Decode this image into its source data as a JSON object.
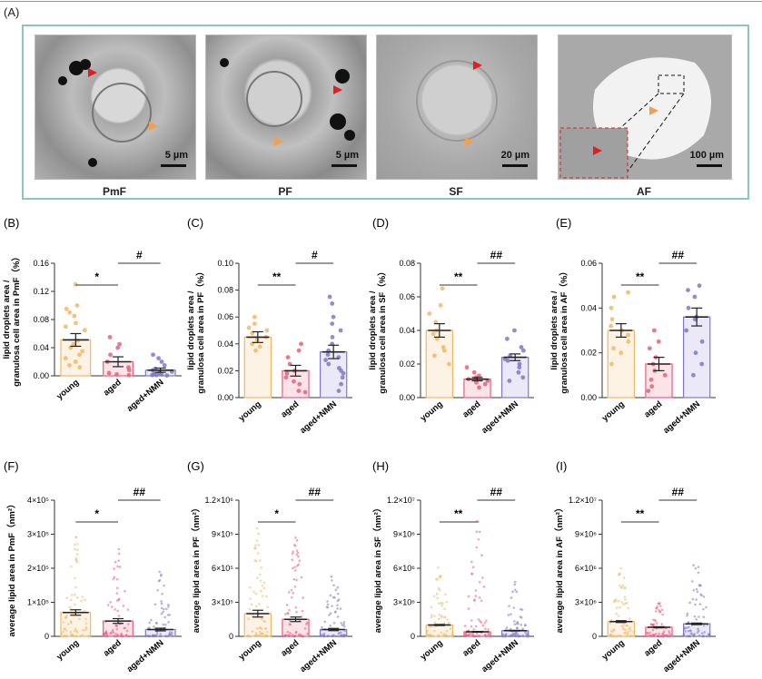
{
  "figure_label": "(A)",
  "em_panels": [
    {
      "caption": "PmF",
      "scale": "5 µm"
    },
    {
      "caption": "PF",
      "scale": "5 µm"
    },
    {
      "caption": "SF",
      "scale": "20 µm"
    },
    {
      "caption": "AF",
      "scale": "100 µm"
    }
  ],
  "colors": {
    "young": "#f2b766",
    "aged": "#e5607e",
    "nmn": "#7f78c8",
    "frame": "#8cc9b3",
    "marker_red": "#e02020",
    "marker_orange": "#f0a050"
  },
  "chart_data": [
    {
      "panel": "(B)",
      "type": "bar",
      "ylabel": "lipid droplets area / granulosa cell area in PmF（%）",
      "categories": [
        "young",
        "aged",
        "aged+NMN"
      ],
      "values": [
        0.051,
        0.02,
        0.008
      ],
      "errors": [
        0.009,
        0.007,
        0.003
      ],
      "points": [
        [
          0.13,
          0.1,
          0.095,
          0.09,
          0.085,
          0.075,
          0.07,
          0.065,
          0.05,
          0.045,
          0.04,
          0.035,
          0.03,
          0.025,
          0.02,
          0.015,
          0.012
        ],
        [
          0.055,
          0.045,
          0.04,
          0.03,
          0.02,
          0.012,
          0.008,
          0.004,
          0.002,
          0.001
        ],
        [
          0.03,
          0.025,
          0.02,
          0.015,
          0.01,
          0.008,
          0.006,
          0.004,
          0.003,
          0.002,
          0.001,
          0.001,
          0.0005
        ]
      ],
      "ylim": [
        0,
        0.16
      ],
      "yticks": [
        "0.00",
        "0.04",
        "0.08",
        "0.12",
        "0.16"
      ],
      "sig": [
        {
          "label": "*",
          "from": 0,
          "to": 1,
          "level": 0
        },
        {
          "label": "#",
          "from": 1,
          "to": 2,
          "level": 1
        }
      ]
    },
    {
      "panel": "(C)",
      "type": "bar",
      "ylabel": "lipid droplets area / granulosa cell area in PF（%）",
      "categories": [
        "young",
        "aged",
        "aged+NMN"
      ],
      "values": [
        0.045,
        0.02,
        0.034
      ],
      "errors": [
        0.004,
        0.004,
        0.005
      ],
      "points": [
        [
          0.06,
          0.055,
          0.052,
          0.05,
          0.048,
          0.045,
          0.043,
          0.04,
          0.038,
          0.035
        ],
        [
          0.04,
          0.035,
          0.03,
          0.025,
          0.02,
          0.018,
          0.015,
          0.012,
          0.01,
          0.005,
          0.004
        ],
        [
          0.075,
          0.07,
          0.06,
          0.055,
          0.05,
          0.045,
          0.04,
          0.035,
          0.032,
          0.03,
          0.028,
          0.025,
          0.022,
          0.02,
          0.018,
          0.015,
          0.01,
          0.005
        ]
      ],
      "ylim": [
        0,
        0.1
      ],
      "yticks": [
        "0.00",
        "0.02",
        "0.04",
        "0.06",
        "0.08",
        "0.10"
      ],
      "sig": [
        {
          "label": "**",
          "from": 0,
          "to": 1,
          "level": 0
        },
        {
          "label": "#",
          "from": 1,
          "to": 2,
          "level": 1
        }
      ]
    },
    {
      "panel": "(D)",
      "type": "bar",
      "ylabel": "lipid droplets area / granulosa cell area in SF（%）",
      "categories": [
        "young",
        "aged",
        "aged+NMN"
      ],
      "values": [
        0.04,
        0.011,
        0.024
      ],
      "errors": [
        0.004,
        0.001,
        0.002
      ],
      "points": [
        [
          0.065,
          0.055,
          0.05,
          0.045,
          0.04,
          0.038,
          0.035,
          0.03,
          0.028,
          0.025,
          0.02
        ],
        [
          0.018,
          0.015,
          0.013,
          0.012,
          0.011,
          0.01,
          0.009,
          0.008,
          0.006
        ],
        [
          0.04,
          0.035,
          0.03,
          0.028,
          0.025,
          0.023,
          0.022,
          0.02,
          0.018,
          0.015,
          0.012,
          0.01
        ]
      ],
      "ylim": [
        0,
        0.08
      ],
      "yticks": [
        "0.00",
        "0.02",
        "0.04",
        "0.06",
        "0.08"
      ],
      "sig": [
        {
          "label": "**",
          "from": 0,
          "to": 1,
          "level": 0
        },
        {
          "label": "##",
          "from": 1,
          "to": 2,
          "level": 1
        }
      ]
    },
    {
      "panel": "(E)",
      "type": "bar",
      "ylabel": "lipid droplets area / granulosa cell area in AF（%）",
      "categories": [
        "young",
        "aged",
        "aged+NMN"
      ],
      "values": [
        0.03,
        0.015,
        0.036
      ],
      "errors": [
        0.003,
        0.003,
        0.004
      ],
      "points": [
        [
          0.047,
          0.045,
          0.04,
          0.035,
          0.032,
          0.03,
          0.028,
          0.025,
          0.022,
          0.02,
          0.015
        ],
        [
          0.03,
          0.025,
          0.022,
          0.018,
          0.015,
          0.012,
          0.01,
          0.008,
          0.005,
          0.003
        ],
        [
          0.05,
          0.048,
          0.045,
          0.04,
          0.036,
          0.035,
          0.03,
          0.025,
          0.02,
          0.015,
          0.01
        ]
      ],
      "ylim": [
        0,
        0.06
      ],
      "yticks": [
        "0.00",
        "0.02",
        "0.04",
        "0.06"
      ],
      "sig": [
        {
          "label": "**",
          "from": 0,
          "to": 1,
          "level": 0
        },
        {
          "label": "##",
          "from": 1,
          "to": 2,
          "level": 1
        }
      ]
    },
    {
      "panel": "(F)",
      "type": "scatter-bar",
      "ylabel": "average lipid area in PmF（nm²）",
      "categories": [
        "young",
        "aged",
        "aged+NMN"
      ],
      "values": [
        70000,
        45000,
        20000
      ],
      "errors": [
        8000,
        7000,
        4000
      ],
      "point_max": [
        300000,
        260000,
        190000
      ],
      "ylim": [
        0,
        400000
      ],
      "yticks": [
        "0",
        "1×10⁵",
        "2×10⁵",
        "3×10⁵",
        "4×10⁵"
      ],
      "sig": [
        {
          "label": "*",
          "from": 0,
          "to": 1,
          "level": 0
        },
        {
          "label": "##",
          "from": 1,
          "to": 2,
          "level": 1
        }
      ]
    },
    {
      "panel": "(G)",
      "type": "scatter-bar",
      "ylabel": "average lipid area in PF（nm²）",
      "categories": [
        "young",
        "aged",
        "aged+NMN"
      ],
      "values": [
        200000,
        150000,
        60000
      ],
      "errors": [
        30000,
        20000,
        10000
      ],
      "point_max": [
        1000000,
        900000,
        600000
      ],
      "ylim": [
        0,
        1200000
      ],
      "yticks": [
        "0",
        "3×10⁵",
        "6×10⁵",
        "9×10⁵",
        "1.2×10⁶"
      ],
      "sig": [
        {
          "label": "*",
          "from": 0,
          "to": 1,
          "level": 0
        },
        {
          "label": "##",
          "from": 1,
          "to": 2,
          "level": 1
        }
      ]
    },
    {
      "panel": "(H)",
      "type": "scatter-bar",
      "ylabel": "average lipid area in SF（nm²）",
      "categories": [
        "young",
        "aged",
        "aged+NMN"
      ],
      "values": [
        1000000,
        400000,
        500000
      ],
      "errors": [
        50000,
        30000,
        30000
      ],
      "point_max": [
        6500000,
        10500000,
        5000000
      ],
      "ylim": [
        0,
        12000000
      ],
      "yticks": [
        "0",
        "3×10⁶",
        "6×10⁶",
        "9×10⁶",
        "1.2×10⁷"
      ],
      "sig": [
        {
          "label": "**",
          "from": 0,
          "to": 1,
          "level": 0
        },
        {
          "label": "##",
          "from": 1,
          "to": 2,
          "level": 1
        }
      ]
    },
    {
      "panel": "(I)",
      "type": "scatter-bar",
      "ylabel": "average lipid area in AF（nm²）",
      "categories": [
        "young",
        "aged",
        "aged+NMN"
      ],
      "values": [
        1300000,
        800000,
        1100000
      ],
      "errors": [
        80000,
        50000,
        70000
      ],
      "point_max": [
        6500000,
        3000000,
        8000000
      ],
      "ylim": [
        0,
        12000000
      ],
      "yticks": [
        "0",
        "3×10⁶",
        "6×10⁶",
        "9×10⁶",
        "1.2×10⁷"
      ],
      "sig": [
        {
          "label": "**",
          "from": 0,
          "to": 1,
          "level": 0
        },
        {
          "label": "##",
          "from": 1,
          "to": 2,
          "level": 1
        }
      ]
    }
  ]
}
